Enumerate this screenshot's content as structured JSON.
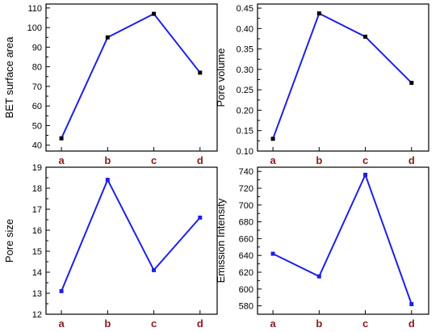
{
  "colors": {
    "line": "#1f1fe6",
    "category_label": "#8b1a1a",
    "axis": "#000000"
  },
  "chart_data": [
    {
      "type": "line",
      "categories": [
        "a",
        "b",
        "c",
        "d"
      ],
      "values": [
        43.5,
        95,
        107,
        77
      ],
      "ylabel": "BET surface area",
      "ylim": [
        37,
        112
      ],
      "yticks": [
        40,
        50,
        60,
        70,
        80,
        90,
        100,
        110
      ],
      "ytick_labels": [
        "40",
        "50",
        "60",
        "70",
        "80",
        "90",
        "100",
        "110"
      ],
      "marker_color": "#000000"
    },
    {
      "type": "line",
      "categories": [
        "a",
        "b",
        "c",
        "d"
      ],
      "values": [
        0.13,
        0.437,
        0.38,
        0.267
      ],
      "ylabel": "Pore volume",
      "ylim": [
        0.1,
        0.46
      ],
      "yticks": [
        0.1,
        0.15,
        0.2,
        0.25,
        0.3,
        0.35,
        0.4,
        0.45
      ],
      "ytick_labels": [
        "0.10",
        "0.15",
        "0.20",
        "0.25",
        "0.30",
        "0.35",
        "0.40",
        "0.45"
      ],
      "marker_color": "#000000"
    },
    {
      "type": "line",
      "categories": [
        "a",
        "b",
        "c",
        "d"
      ],
      "values": [
        13.1,
        18.4,
        14.1,
        16.6
      ],
      "ylabel": "Pore size",
      "ylim": [
        12,
        19
      ],
      "yticks": [
        12,
        13,
        14,
        15,
        16,
        17,
        18,
        19
      ],
      "ytick_labels": [
        "12",
        "13",
        "14",
        "15",
        "16",
        "17",
        "18",
        "19"
      ],
      "marker_color": "#1f1fe6"
    },
    {
      "type": "line",
      "categories": [
        "a",
        "b",
        "c",
        "d"
      ],
      "values": [
        642,
        615,
        736,
        582
      ],
      "ylabel": "Emission Intensity",
      "ylim": [
        570,
        745
      ],
      "yticks": [
        580,
        600,
        620,
        640,
        660,
        680,
        700,
        720,
        740
      ],
      "ytick_labels": [
        "580",
        "600",
        "620",
        "640",
        "660",
        "680",
        "700",
        "720",
        "740"
      ],
      "marker_color": "#1f1fe6"
    }
  ]
}
